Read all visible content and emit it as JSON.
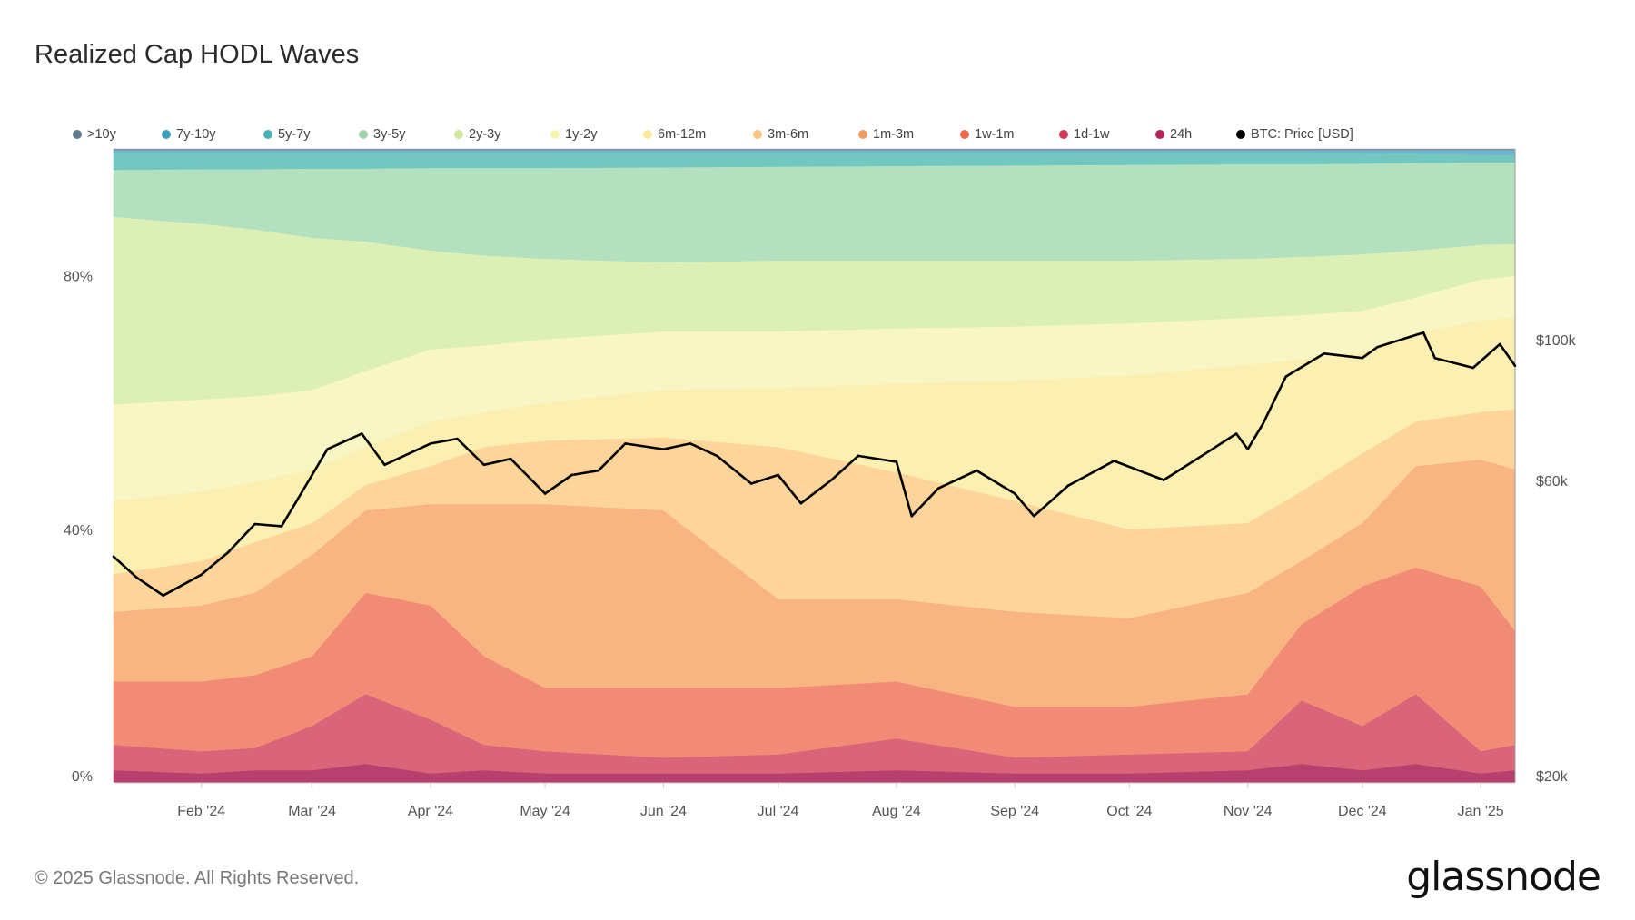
{
  "title": "Realized Cap HODL Waves",
  "footer": "© 2025 Glassnode. All Rights Reserved.",
  "logo": "glassnode",
  "chart_data": {
    "type": "area",
    "stacked": true,
    "title": "Realized Cap HODL Waves",
    "legend_position": "top",
    "grid": false,
    "x": [
      "2024-01-09",
      "2024-02-01",
      "2024-02-15",
      "2024-03-01",
      "2024-03-15",
      "2024-04-01",
      "2024-04-15",
      "2024-05-01",
      "2024-06-01",
      "2024-07-01",
      "2024-08-01",
      "2024-09-01",
      "2024-10-01",
      "2024-11-01",
      "2024-11-15",
      "2024-12-01",
      "2024-12-15",
      "2025-01-01",
      "2025-01-10"
    ],
    "x_ticks": [
      "Feb '24",
      "Mar '24",
      "Apr '24",
      "May '24",
      "Jun '24",
      "Jul '24",
      "Aug '24",
      "Sep '24",
      "Oct '24",
      "Nov '24",
      "Dec '24",
      "Jan '25"
    ],
    "x_tick_dates": [
      "2024-02-01",
      "2024-03-01",
      "2024-04-01",
      "2024-05-01",
      "2024-06-01",
      "2024-07-01",
      "2024-08-01",
      "2024-09-01",
      "2024-10-01",
      "2024-11-01",
      "2024-12-01",
      "2025-01-01"
    ],
    "y_left": {
      "ticks": [
        "0%",
        "40%",
        "80%"
      ],
      "tick_values": [
        0,
        40,
        80
      ],
      "range": [
        0,
        100
      ]
    },
    "y_right": {
      "scale": "log",
      "ticks": [
        "$20k",
        "$60k",
        "$100k"
      ],
      "tick_values": [
        20000,
        60000,
        100000
      ],
      "range": [
        20000,
        200000
      ]
    },
    "series": [
      {
        "name": "24h",
        "color": "#b3245a",
        "fill": "#b8406e",
        "values": [
          2,
          1.5,
          2,
          2,
          3,
          1.5,
          2,
          1.5,
          1.5,
          1.5,
          2,
          1.5,
          1.5,
          2,
          3,
          2,
          3,
          1.5,
          2
        ]
      },
      {
        "name": "1d-1w",
        "color": "#d33a56",
        "fill": "#da6479",
        "values": [
          4,
          3.5,
          3.5,
          7,
          11,
          8.5,
          4,
          3.5,
          2.5,
          3,
          5,
          2.5,
          3,
          3,
          10,
          7,
          11,
          3.5,
          4
        ]
      },
      {
        "name": "1w-1m",
        "color": "#f06a4a",
        "fill": "#f28b76",
        "values": [
          10,
          11,
          11.5,
          11,
          16,
          18,
          14,
          10,
          11,
          10.5,
          9,
          8,
          7.5,
          9,
          12,
          22,
          20,
          26,
          18
        ]
      },
      {
        "name": "1m-3m",
        "color": "#f49a64",
        "fill": "#f8b581",
        "values": [
          11,
          12,
          13,
          16,
          13,
          16,
          24,
          29,
          28,
          14,
          13,
          15,
          14,
          16,
          10,
          10,
          16,
          20,
          25.5
        ]
      },
      {
        "name": "3m-6m",
        "color": "#fbc47f",
        "fill": "#fdd59b",
        "values": [
          6,
          7,
          8,
          5,
          4,
          6,
          9,
          10,
          11.5,
          24,
          20,
          17.5,
          14,
          11,
          11,
          11,
          7,
          7.5,
          9.5
        ]
      },
      {
        "name": "6m-12m",
        "color": "#fce99a",
        "fill": "#fcefb2",
        "values": [
          11.5,
          11,
          9.5,
          8.5,
          6,
          7,
          5.5,
          6,
          7.5,
          9.3,
          14,
          19,
          24.3,
          25,
          20.8,
          16,
          14,
          14.5,
          14.4
        ]
      },
      {
        "name": "1y-2y",
        "color": "#f6f5b0",
        "fill": "#f7f6c4",
        "values": [
          15.2,
          14.5,
          13.5,
          12.5,
          12,
          11.4,
          10.5,
          10,
          9.2,
          8.9,
          8.7,
          8.5,
          8.2,
          7.4,
          7,
          6.5,
          5.6,
          6.4,
          6.6
        ]
      },
      {
        "name": "2y-3y",
        "color": "#cfe8a0",
        "fill": "#dcf0b5",
        "values": [
          29.6,
          27.7,
          26.3,
          24,
          20.4,
          15.6,
          14.2,
          12.7,
          10.9,
          11.2,
          10.7,
          10.4,
          9.9,
          9.3,
          9.2,
          8.9,
          7.4,
          5.5,
          5
        ]
      },
      {
        "name": "3y-5y",
        "color": "#9fd3a9",
        "fill": "#b3e0bf",
        "values": [
          7.4,
          8.6,
          9.5,
          10.9,
          11.5,
          13,
          13.8,
          14.3,
          15,
          14.8,
          14.9,
          15,
          15.1,
          14.9,
          14.6,
          14.3,
          13.8,
          13,
          12.9
        ]
      },
      {
        "name": "5y-7y",
        "color": "#45b3b8",
        "fill": "#72c8c0",
        "values": [
          2.8,
          2.7,
          2.7,
          2.6,
          2.6,
          2.5,
          2.5,
          2.5,
          2.4,
          2.3,
          2.2,
          2.1,
          2,
          1.9,
          1.9,
          1.7,
          1.5,
          1.2,
          1.1
        ]
      },
      {
        "name": "7y-10y",
        "color": "#3a9fbf",
        "fill": "#6fb4d0",
        "values": [
          0.3,
          0.3,
          0.3,
          0.3,
          0.3,
          0.3,
          0.3,
          0.3,
          0.3,
          0.3,
          0.3,
          0.3,
          0.3,
          0.3,
          0.3,
          0.4,
          0.5,
          0.7,
          0.8
        ]
      },
      {
        "name": ">10y",
        "color": "#607d8b",
        "fill": "#7f97a3",
        "values": [
          0.2,
          0.2,
          0.2,
          0.2,
          0.2,
          0.2,
          0.2,
          0.2,
          0.2,
          0.2,
          0.2,
          0.2,
          0.2,
          0.2,
          0.2,
          0.2,
          0.2,
          0.2,
          0.2
        ]
      }
    ],
    "price": {
      "name": "BTC: Price [USD]",
      "color": "#000000",
      "axis": "right",
      "x": [
        "2024-01-09",
        "2024-01-15",
        "2024-01-22",
        "2024-02-01",
        "2024-02-08",
        "2024-02-15",
        "2024-02-22",
        "2024-03-01",
        "2024-03-05",
        "2024-03-14",
        "2024-03-20",
        "2024-04-01",
        "2024-04-08",
        "2024-04-15",
        "2024-04-22",
        "2024-05-01",
        "2024-05-08",
        "2024-05-15",
        "2024-05-22",
        "2024-06-01",
        "2024-06-08",
        "2024-06-15",
        "2024-06-24",
        "2024-07-01",
        "2024-07-07",
        "2024-07-15",
        "2024-07-22",
        "2024-08-01",
        "2024-08-05",
        "2024-08-12",
        "2024-08-22",
        "2024-09-01",
        "2024-09-06",
        "2024-09-15",
        "2024-09-27",
        "2024-10-10",
        "2024-10-21",
        "2024-10-29",
        "2024-11-01",
        "2024-11-05",
        "2024-11-11",
        "2024-11-21",
        "2024-12-01",
        "2024-12-05",
        "2024-12-17",
        "2024-12-20",
        "2024-12-30",
        "2025-01-06",
        "2025-01-10"
      ],
      "values": [
        45500,
        42200,
        39500,
        42600,
        46200,
        51200,
        50800,
        61200,
        67200,
        71100,
        63500,
        68600,
        69800,
        63500,
        64900,
        57200,
        61200,
        62200,
        68600,
        67200,
        68600,
        65600,
        59300,
        61200,
        55200,
        60100,
        65600,
        64200,
        52700,
        58300,
        62200,
        57200,
        52700,
        58900,
        64400,
        60100,
        66200,
        71100,
        67200,
        73700,
        87500,
        95100,
        93600,
        97400,
        102600,
        93600,
        90300,
        98400,
        91000
      ]
    },
    "legend": [
      ">10y",
      "7y-10y",
      "5y-7y",
      "3y-5y",
      "2y-3y",
      "1y-2y",
      "6m-12m",
      "3m-6m",
      "1m-3m",
      "1w-1m",
      "1d-1w",
      "24h",
      "BTC: Price [USD]"
    ]
  }
}
